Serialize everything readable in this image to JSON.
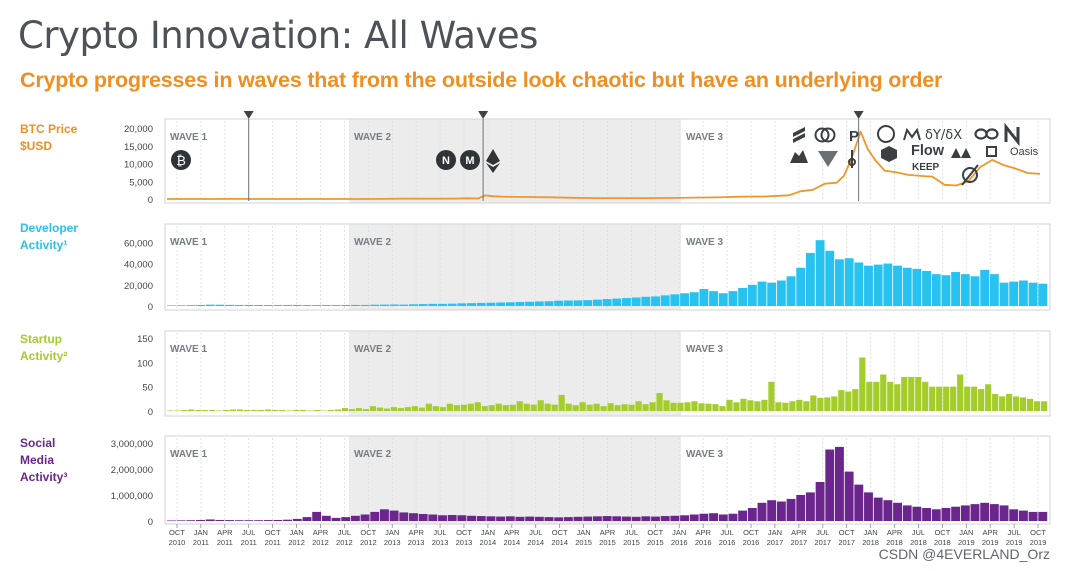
{
  "title": "Crypto Innovation: All Waves",
  "subtitle": "Crypto progresses in waves that from the outside look chaotic but have an underlying order",
  "watermark": "CSDN @4EVERLAND_Orz",
  "colors": {
    "btc": "#f0962a",
    "dev": "#28c2f0",
    "startup": "#a4cd2c",
    "social": "#6a268d",
    "wave_shade": "#ececec",
    "panel_border": "#cfd3d7"
  },
  "wave_labels": [
    "WAVE 1",
    "WAVE 2",
    "WAVE 3"
  ],
  "x_axis": {
    "months": [
      "OCT",
      "JAN",
      "APR",
      "JUL",
      "OCT",
      "JAN",
      "APR",
      "JUL",
      "OCT",
      "JAN",
      "APR",
      "JUL",
      "OCT",
      "JAN",
      "APR",
      "JUL",
      "OCT",
      "JAN",
      "APR",
      "JUL",
      "OCT",
      "JAN",
      "APR",
      "JUL",
      "OCT",
      "JAN",
      "APR",
      "JUL",
      "OCT",
      "JAN",
      "APR",
      "JUL",
      "OCT",
      "JAN",
      "APR",
      "JUL",
      "OCT"
    ],
    "years": [
      "2010",
      "2011",
      "2011",
      "2011",
      "2011",
      "2012",
      "2012",
      "2012",
      "2012",
      "2013",
      "2013",
      "2013",
      "2013",
      "2014",
      "2014",
      "2014",
      "2014",
      "2015",
      "2015",
      "2015",
      "2015",
      "2016",
      "2016",
      "2016",
      "2016",
      "2017",
      "2017",
      "2017",
      "2017",
      "2018",
      "2018",
      "2018",
      "2018",
      "2019",
      "2019",
      "2019",
      "2019"
    ]
  },
  "markers": {
    "positions_quarter_index": [
      3.5,
      13.3,
      29.0
    ]
  },
  "logos": {
    "wave1": [
      "bitcoin-logo"
    ],
    "wave2": [
      "nem-logo",
      "monero-logo",
      "ethereum-logo"
    ],
    "wave3_text": [
      "Flow",
      "KEEP",
      "Oasis",
      "δY/δX"
    ]
  },
  "chart_data": [
    {
      "type": "line",
      "panel_label": [
        "BTC Price",
        "$USD"
      ],
      "title": "BTC Price $USD",
      "ylim": [
        0,
        20000
      ],
      "yticks": [
        "20,000",
        "15,000",
        "10,000",
        "5,000",
        "0"
      ],
      "ytick_values": [
        20000,
        15000,
        10000,
        5000,
        0
      ],
      "x_quarter_index": [
        0,
        1,
        2,
        3,
        4,
        5,
        6,
        7,
        8,
        9,
        10,
        11,
        12,
        12.5,
        13,
        13.3,
        13.6,
        14,
        15,
        16,
        17,
        18,
        19,
        20,
        21,
        22,
        23,
        24,
        25,
        26,
        26.5,
        27,
        27.5,
        28,
        28.3,
        28.6,
        29,
        29.3,
        29.6,
        30,
        30.5,
        31,
        31.5,
        32,
        32.5,
        33,
        33.5,
        34,
        34.5,
        35,
        35.5,
        36,
        36.5
      ],
      "values": [
        0,
        0,
        10,
        15,
        3,
        5,
        5,
        7,
        11,
        15,
        100,
        90,
        120,
        200,
        150,
        1000,
        800,
        650,
        550,
        480,
        350,
        250,
        240,
        250,
        270,
        400,
        450,
        650,
        700,
        1050,
        2200,
        2600,
        4300,
        4600,
        6500,
        11000,
        19000,
        14000,
        11000,
        8000,
        7500,
        6800,
        6500,
        6300,
        4000,
        3800,
        5000,
        9000,
        11000,
        9500,
        8500,
        7300,
        7100
      ]
    },
    {
      "type": "bar",
      "panel_label": [
        "Developer",
        "Activity¹"
      ],
      "title": "Developer Activity",
      "ylim": [
        0,
        65000
      ],
      "yticks": [
        "60,000",
        "40,000",
        "20,000",
        "0"
      ],
      "ytick_values": [
        60000,
        40000,
        20000,
        0
      ],
      "values": [
        600,
        700,
        800,
        1000,
        1300,
        1200,
        1100,
        1000,
        1000,
        900,
        900,
        900,
        1000,
        1000,
        900,
        900,
        900,
        900,
        1000,
        1000,
        1000,
        1200,
        1300,
        1400,
        1300,
        1600,
        1800,
        2000,
        2000,
        2200,
        2500,
        2700,
        2900,
        3100,
        3300,
        3500,
        3800,
        4000,
        4300,
        4500,
        5000,
        5200,
        5300,
        5500,
        6000,
        6500,
        7000,
        7500,
        8000,
        8700,
        9000,
        10000,
        11000,
        12000,
        13000,
        16000,
        14000,
        12000,
        14000,
        17000,
        20000,
        23000,
        22000,
        24000,
        28000,
        36000,
        50000,
        62000,
        52000,
        44000,
        45000,
        41000,
        38000,
        39000,
        40000,
        38000,
        36000,
        35000,
        33000,
        30000,
        29000,
        32000,
        30000,
        28000,
        34000,
        30000,
        22000,
        23000,
        24000,
        22000,
        21000
      ],
      "xlabel": "",
      "ylabel": ""
    },
    {
      "type": "bar",
      "panel_label": [
        "Startup",
        "Activity²"
      ],
      "title": "Startup Activity",
      "ylim": [
        0,
        150
      ],
      "yticks": [
        "150",
        "100",
        "50",
        "0"
      ],
      "ytick_values": [
        150,
        100,
        50,
        0
      ],
      "values": [
        1,
        1,
        2,
        3,
        2,
        2,
        2,
        1,
        2,
        3,
        3,
        2,
        2,
        2,
        3,
        2,
        2,
        1,
        2,
        2,
        1,
        2,
        1,
        2,
        3,
        6,
        4,
        6,
        4,
        10,
        7,
        5,
        8,
        6,
        8,
        10,
        7,
        15,
        10,
        8,
        15,
        12,
        13,
        15,
        18,
        10,
        12,
        15,
        12,
        13,
        20,
        15,
        13,
        22,
        15,
        13,
        33,
        15,
        12,
        18,
        13,
        15,
        10,
        16,
        12,
        14,
        13,
        20,
        14,
        18,
        37,
        22,
        17,
        17,
        18,
        20,
        16,
        15,
        14,
        10,
        23,
        18,
        25,
        22,
        20,
        23,
        60,
        18,
        17,
        20,
        23,
        20,
        32,
        27,
        28,
        30,
        43,
        40,
        45,
        110,
        60,
        60,
        75,
        60,
        55,
        70,
        70,
        70,
        60,
        50,
        50,
        50,
        50,
        75,
        50,
        50,
        45,
        55,
        35,
        30,
        35,
        30,
        28,
        25,
        20,
        20
      ],
      "xlabel": "",
      "ylabel": ""
    },
    {
      "type": "bar",
      "panel_label": [
        "Social",
        "Media",
        "Activity³"
      ],
      "title": "Social Media Activity",
      "ylim": [
        0,
        3000000
      ],
      "yticks": [
        "3,000,000",
        "2,000,000",
        "1,000,000",
        "0"
      ],
      "ytick_values": [
        3000000,
        2000000,
        1000000,
        0
      ],
      "values": [
        20000,
        25000,
        30000,
        40000,
        60000,
        40000,
        35000,
        30000,
        30000,
        30000,
        35000,
        40000,
        50000,
        80000,
        150000,
        350000,
        200000,
        120000,
        150000,
        200000,
        250000,
        350000,
        450000,
        400000,
        330000,
        300000,
        270000,
        250000,
        220000,
        230000,
        220000,
        200000,
        190000,
        180000,
        170000,
        180000,
        160000,
        170000,
        160000,
        150000,
        140000,
        150000,
        160000,
        170000,
        180000,
        190000,
        180000,
        170000,
        160000,
        180000,
        170000,
        190000,
        200000,
        220000,
        250000,
        280000,
        300000,
        250000,
        280000,
        400000,
        500000,
        700000,
        800000,
        750000,
        850000,
        1000000,
        1100000,
        1500000,
        2750000,
        2850000,
        1900000,
        1400000,
        1100000,
        900000,
        800000,
        700000,
        600000,
        550000,
        500000,
        450000,
        500000,
        550000,
        600000,
        650000,
        700000,
        650000,
        600000,
        450000,
        400000,
        350000,
        350000
      ],
      "xlabel": "",
      "ylabel": ""
    }
  ]
}
